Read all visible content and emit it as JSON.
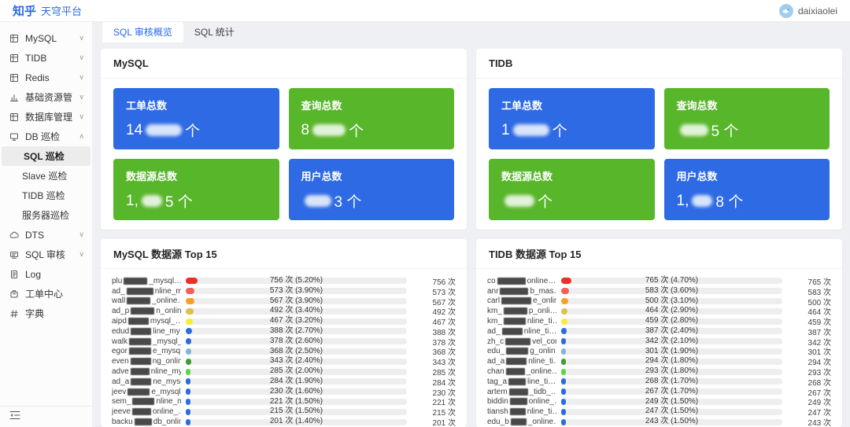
{
  "header": {
    "logo_primary": "知乎",
    "logo_secondary": "天穹平台",
    "user": "daixiaolei"
  },
  "colors": {
    "accent_blue": "#2b6ce2",
    "card_blue": "#2d6ae4",
    "card_green": "#58b62b",
    "bar_track": "#eeeeee"
  },
  "tabs": [
    {
      "label": "SQL 审核概览",
      "active": true
    },
    {
      "label": "SQL 统计",
      "active": false
    }
  ],
  "sidebar": {
    "items": [
      {
        "label": "MySQL",
        "icon": "table-icon",
        "chevron": "down"
      },
      {
        "label": "TIDB",
        "icon": "table-icon",
        "chevron": "down"
      },
      {
        "label": "Redis",
        "icon": "table-icon",
        "chevron": "down"
      },
      {
        "label": "基础资源管理",
        "icon": "chart-icon",
        "chevron": "down"
      },
      {
        "label": "数据库管理",
        "icon": "table-icon",
        "chevron": "down"
      },
      {
        "label": "DB 巡检",
        "icon": "monitor-icon",
        "chevron": "up"
      },
      {
        "label": "SQL 巡检",
        "child": true,
        "active": true
      },
      {
        "label": "Slave 巡检",
        "child": true
      },
      {
        "label": "TIDB 巡检",
        "child": true
      },
      {
        "label": "服务器巡检",
        "child": true
      },
      {
        "label": "DTS",
        "icon": "cloud-icon",
        "chevron": "down"
      },
      {
        "label": "SQL 审核",
        "icon": "audit-icon",
        "chevron": "down"
      },
      {
        "label": "Log",
        "icon": "log-icon"
      },
      {
        "label": "工单中心",
        "icon": "ticket-icon"
      },
      {
        "label": "字典",
        "icon": "dict-icon"
      }
    ]
  },
  "panels": {
    "mysql": {
      "title": "MySQL",
      "cards": [
        {
          "label": "工单总数",
          "bg": "#2d6ae4",
          "pre": "14",
          "redact": 46,
          "suf": "个"
        },
        {
          "label": "查询总数",
          "bg": "#58b62b",
          "pre": "8",
          "redact": 42,
          "suf": "个"
        },
        {
          "label": "数据源总数",
          "bg": "#58b62b",
          "pre": "1,",
          "redact": 26,
          "suf": "5 个"
        },
        {
          "label": "用户总数",
          "bg": "#2d6ae4",
          "pre": "",
          "redact": 34,
          "suf": "3 个"
        }
      ]
    },
    "tidb": {
      "title": "TIDB",
      "cards": [
        {
          "label": "工单总数",
          "bg": "#2d6ae4",
          "pre": "1",
          "redact": 46,
          "suf": "个"
        },
        {
          "label": "查询总数",
          "bg": "#58b62b",
          "pre": "",
          "redact": 36,
          "suf": "5 个"
        },
        {
          "label": "数据源总数",
          "bg": "#58b62b",
          "pre": "",
          "redact": 38,
          "suf": "个"
        },
        {
          "label": "用户总数",
          "bg": "#2d6ae4",
          "pre": "1,",
          "redact": 26,
          "suf": "8 个"
        }
      ]
    },
    "mysql_top": {
      "title": "MySQL 数据源 Top 15",
      "rows": [
        {
          "pre": "plu",
          "nr": 30,
          "suf": "_mysql…",
          "label": "756 次 (5.20%)",
          "right": "756 次",
          "pct": 5.2,
          "color": "#ee2f26"
        },
        {
          "pre": "ad_",
          "nr": 34,
          "suf": "nline_m…",
          "label": "573 次 (3.90%)",
          "right": "573 次",
          "pct": 3.9,
          "color": "#f2605a"
        },
        {
          "pre": "wall",
          "nr": 30,
          "suf": "_online…",
          "label": "567 次 (3.90%)",
          "right": "567 次",
          "pct": 3.9,
          "color": "#f6a02b"
        },
        {
          "pre": "ad_p",
          "nr": 30,
          "suf": "n_onlin…",
          "label": "492 次 (3.40%)",
          "right": "492 次",
          "pct": 3.4,
          "color": "#ddc050"
        },
        {
          "pre": "aipd",
          "nr": 26,
          "suf": "mysql_…",
          "label": "467 次 (3.20%)",
          "right": "467 次",
          "pct": 3.2,
          "color": "#f6ee3b"
        },
        {
          "pre": "edud",
          "nr": 26,
          "suf": "line_my…",
          "label": "388 次 (2.70%)",
          "right": "388 次",
          "pct": 2.7,
          "color": "#2c6ce0"
        },
        {
          "pre": "walk",
          "nr": 28,
          "suf": "_mysql_…",
          "label": "378 次 (2.60%)",
          "right": "378 次",
          "pct": 2.6,
          "color": "#2c6ce0"
        },
        {
          "pre": "egor",
          "nr": 28,
          "suf": "e_mysq…",
          "label": "368 次 (2.50%)",
          "right": "368 次",
          "pct": 2.5,
          "color": "#7fb6d9"
        },
        {
          "pre": "even",
          "nr": 26,
          "suf": "ng_onlin…",
          "label": "343 次 (2.40%)",
          "right": "343 次",
          "pct": 2.4,
          "color": "#3f9e33"
        },
        {
          "pre": "adve",
          "nr": 24,
          "suf": "nline_my…",
          "label": "285 次 (2.00%)",
          "right": "285 次",
          "pct": 2.0,
          "color": "#58d747"
        },
        {
          "pre": "ad_a",
          "nr": 26,
          "suf": "ne_mysq…",
          "label": "284 次 (1.90%)",
          "right": "284 次",
          "pct": 1.9,
          "color": "#2c6ce0"
        },
        {
          "pre": "jeev",
          "nr": 28,
          "suf": "e_mysql…",
          "label": "230 次 (1.60%)",
          "right": "230 次",
          "pct": 1.6,
          "color": "#2c6ce0"
        },
        {
          "pre": "sem_",
          "nr": 28,
          "suf": "nline_m…",
          "label": "221 次 (1.50%)",
          "right": "221 次",
          "pct": 1.5,
          "color": "#2c6ce0"
        },
        {
          "pre": "jeeve",
          "nr": 24,
          "suf": "online_…",
          "label": "215 次 (1.50%)",
          "right": "215 次",
          "pct": 1.5,
          "color": "#2c6ce0"
        },
        {
          "pre": "backu",
          "nr": 22,
          "suf": "db_onlin…",
          "label": "201 次 (1.40%)",
          "right": "201 次",
          "pct": 1.4,
          "color": "#2c6ce0"
        }
      ]
    },
    "tidb_top": {
      "title": "TIDB 数据源 Top 15",
      "rows": [
        {
          "pre": "co",
          "nr": 36,
          "suf": "online…",
          "label": "765 次 (4.70%)",
          "right": "765 次",
          "pct": 4.7,
          "color": "#ee2f26"
        },
        {
          "pre": "anr",
          "nr": 36,
          "suf": "b_mas…",
          "label": "583 次 (3.60%)",
          "right": "583 次",
          "pct": 3.6,
          "color": "#f2605a"
        },
        {
          "pre": "carl",
          "nr": 38,
          "suf": "e_onlin…",
          "label": "500 次 (3.10%)",
          "right": "500 次",
          "pct": 3.1,
          "color": "#f6a02b"
        },
        {
          "pre": "km_",
          "nr": 30,
          "suf": "p_onli…",
          "label": "464 次 (2.90%)",
          "right": "464 次",
          "pct": 2.9,
          "color": "#ddc050"
        },
        {
          "pre": "km_",
          "nr": 28,
          "suf": "nline_ti…",
          "label": "459 次 (2.80%)",
          "right": "459 次",
          "pct": 2.8,
          "color": "#f6ee3b"
        },
        {
          "pre": "ad_",
          "nr": 26,
          "suf": "nline_ti…",
          "label": "387 次 (2.40%)",
          "right": "387 次",
          "pct": 2.4,
          "color": "#2c6ce0"
        },
        {
          "pre": "zh_c",
          "nr": 32,
          "suf": "vel_cor…",
          "label": "342 次 (2.10%)",
          "right": "342 次",
          "pct": 2.1,
          "color": "#2c6ce0"
        },
        {
          "pre": "edu_",
          "nr": 28,
          "suf": "g_onlin…",
          "label": "301 次 (1.90%)",
          "right": "301 次",
          "pct": 1.9,
          "color": "#7fb6d9"
        },
        {
          "pre": "ad_a",
          "nr": 26,
          "suf": "nline_ti…",
          "label": "294 次 (1.80%)",
          "right": "294 次",
          "pct": 1.8,
          "color": "#3f9e33"
        },
        {
          "pre": "chan",
          "nr": 24,
          "suf": "_online…",
          "label": "293 次 (1.80%)",
          "right": "293 次",
          "pct": 1.8,
          "color": "#58d747"
        },
        {
          "pre": "tag_a",
          "nr": 22,
          "suf": "line_ti…",
          "label": "268 次 (1.70%)",
          "right": "268 次",
          "pct": 1.7,
          "color": "#2c6ce0"
        },
        {
          "pre": "artem",
          "nr": 24,
          "suf": "_tidb_…",
          "label": "267 次 (1.70%)",
          "right": "267 次",
          "pct": 1.7,
          "color": "#2c6ce0"
        },
        {
          "pre": "biddin",
          "nr": 22,
          "suf": "online_…",
          "label": "249 次 (1.50%)",
          "right": "249 次",
          "pct": 1.5,
          "color": "#2c6ce0"
        },
        {
          "pre": "tiansh",
          "nr": 20,
          "suf": "nline_ti…",
          "label": "247 次 (1.50%)",
          "right": "247 次",
          "pct": 1.5,
          "color": "#2c6ce0"
        },
        {
          "pre": "edu_b",
          "nr": 20,
          "suf": "_online…",
          "label": "243 次 (1.50%)",
          "right": "243 次",
          "pct": 1.5,
          "color": "#2c6ce0"
        }
      ]
    }
  }
}
